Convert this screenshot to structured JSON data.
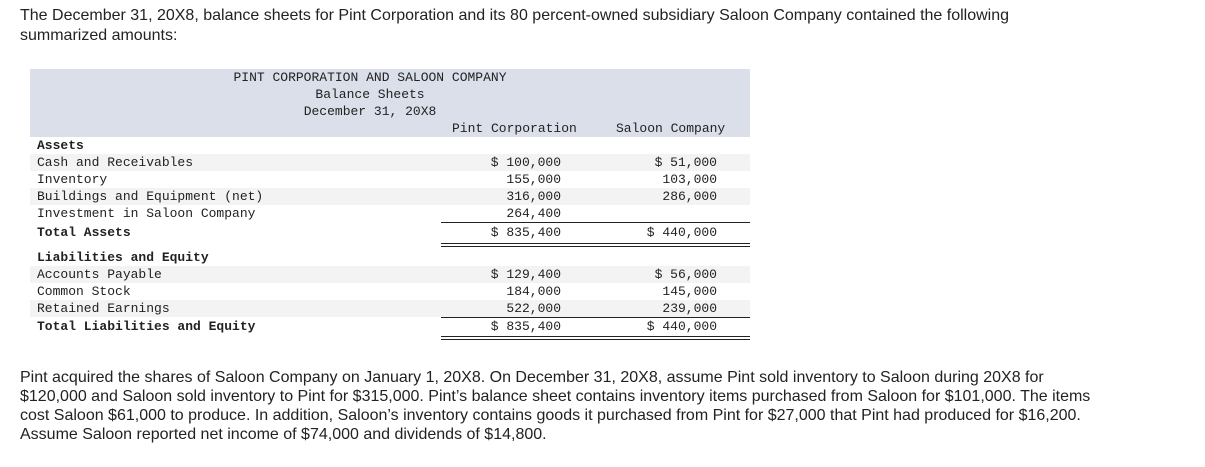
{
  "intro": "The December 31, 20X8, balance sheets for Pint Corporation and its 80 percent-owned subsidiary Saloon Company contained the following summarized amounts:",
  "table": {
    "title1": "PINT CORPORATION AND SALOON COMPANY",
    "title2": "Balance Sheets",
    "title3": "December 31, 20X8",
    "col1": "Pint Corporation",
    "col2": "Saloon Company",
    "assets_heading": "Assets",
    "assets": [
      {
        "label": "Cash and Receivables",
        "pint": "$ 100,000",
        "saloon": "$ 51,000"
      },
      {
        "label": "Inventory",
        "pint": "155,000",
        "saloon": "103,000"
      },
      {
        "label": "Buildings and Equipment (net)",
        "pint": "316,000",
        "saloon": "286,000"
      },
      {
        "label": "Investment in Saloon Company",
        "pint": "264,400",
        "saloon": ""
      }
    ],
    "total_assets": {
      "label": "Total Assets",
      "pint": "$ 835,400",
      "saloon": "$ 440,000"
    },
    "liab_heading": "Liabilities and Equity",
    "liabilities": [
      {
        "label": "Accounts Payable",
        "pint": "$ 129,400",
        "saloon": "$ 56,000"
      },
      {
        "label": "Common Stock",
        "pint": "184,000",
        "saloon": "145,000"
      },
      {
        "label": "Retained Earnings",
        "pint": "522,000",
        "saloon": "239,000"
      }
    ],
    "total_liab": {
      "label": "Total Liabilities and Equity",
      "pint": "$ 835,400",
      "saloon": "$ 440,000"
    }
  },
  "outro": "Pint acquired the shares of Saloon Company on January 1, 20X8. On December 31, 20X8, assume Pint sold inventory to Saloon during 20X8 for $120,000 and Saloon sold inventory to Pint for $315,000. Pint’s balance sheet contains inventory items purchased from Saloon for $101,000. The items cost Saloon $61,000 to produce. In addition, Saloon’s inventory contains goods it purchased from Pint for $27,000 that Pint had produced for $16,200. Assume Saloon reported net income of $74,000 and dividends of $14,800."
}
